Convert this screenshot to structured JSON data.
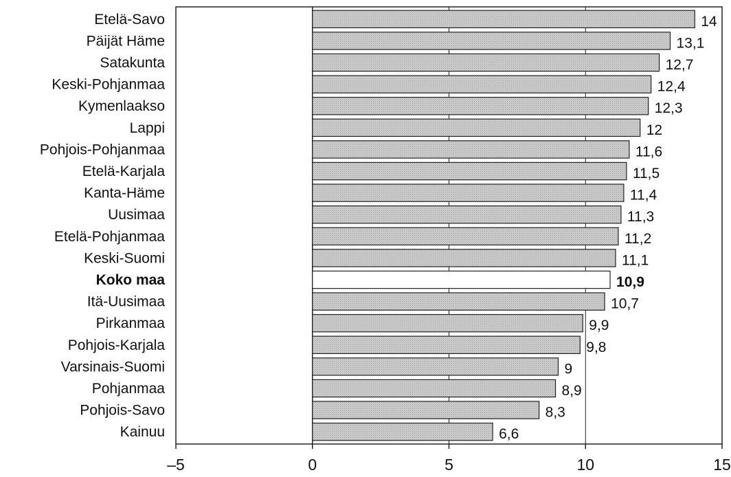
{
  "chart_data": {
    "type": "bar",
    "orientation": "horizontal",
    "categories": [
      "Etelä-Savo",
      "Päijät Häme",
      "Satakunta",
      "Keski-Pohjanmaa",
      "Kymenlaakso",
      "Lappi",
      "Pohjois-Pohjanmaa",
      "Etelä-Karjala",
      "Kanta-Häme",
      "Uusimaa",
      "Etelä-Pohjanmaa",
      "Keski-Suomi",
      "Koko maa",
      "Itä-Uusimaa",
      "Pirkanmaa",
      "Pohjois-Karjala",
      "Varsinais-Suomi",
      "Pohjanmaa",
      "Pohjois-Savo",
      "Kainuu"
    ],
    "values": [
      14,
      13.1,
      12.7,
      12.4,
      12.3,
      12,
      11.6,
      11.5,
      11.4,
      11.3,
      11.2,
      11.1,
      10.9,
      10.7,
      9.9,
      9.8,
      9,
      8.9,
      8.3,
      6.6
    ],
    "value_labels": [
      "14",
      "13,1",
      "12,7",
      "12,4",
      "12,3",
      "12",
      "11,6",
      "11,5",
      "11,4",
      "11,3",
      "11,2",
      "11,1",
      "10,9",
      "10,7",
      "9,9",
      "9,8",
      "9",
      "8,9",
      "8,3",
      "6,6"
    ],
    "highlight_category": "Koko maa",
    "xlim": [
      -5,
      15
    ],
    "xticks": [
      -5,
      0,
      5,
      10,
      15
    ],
    "xtick_labels": [
      "–5",
      "0",
      "5",
      "10",
      "15"
    ],
    "grid": true,
    "colors": {
      "bar_fill": "#cfcfcf",
      "highlight_fill": "#ffffff",
      "stroke": "#222222"
    }
  }
}
